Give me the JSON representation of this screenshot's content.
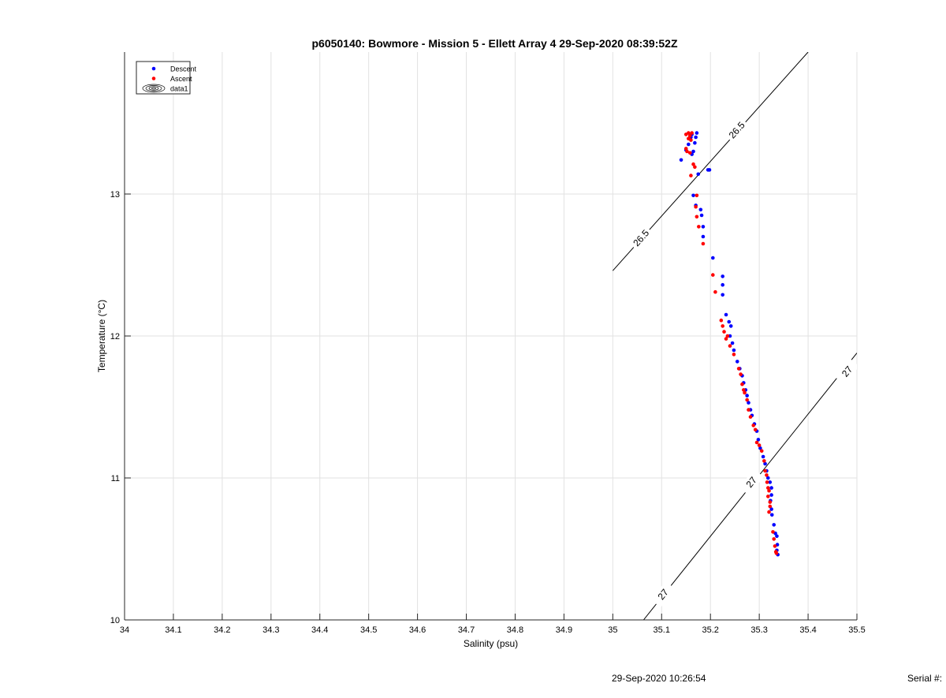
{
  "chart_data": {
    "type": "scatter",
    "title": "p6050140: Bowmore - Mission 5 - Ellett Array 4 29-Sep-2020 08:39:52Z",
    "xlabel": "Salinity (psu)",
    "ylabel": "Temperature (°C)",
    "xlim": [
      34,
      35.5
    ],
    "ylim": [
      10,
      14
    ],
    "x_ticks": [
      34,
      34.1,
      34.2,
      34.3,
      34.4,
      34.5,
      34.6,
      34.7,
      34.8,
      34.9,
      35,
      35.1,
      35.2,
      35.3,
      35.4,
      35.5
    ],
    "x_tick_labels": [
      "34",
      "34.1",
      "34.2",
      "34.3",
      "34.4",
      "34.5",
      "34.6",
      "34.7",
      "34.8",
      "34.9",
      "35",
      "35.1",
      "35.2",
      "35.3",
      "35.4",
      "35.5"
    ],
    "y_ticks": [
      10,
      11,
      12,
      13
    ],
    "y_tick_labels": [
      "10",
      "11",
      "12",
      "13"
    ],
    "grid": true,
    "legend_position": "top-left",
    "legend": [
      {
        "label": "Descent",
        "marker": "dot",
        "color": "#0000ff"
      },
      {
        "label": "Ascent",
        "marker": "dot",
        "color": "#ff0000"
      },
      {
        "label": "data1",
        "marker": "contour"
      }
    ],
    "series": [
      {
        "name": "Descent",
        "color": "#0000ff",
        "points": [
          [
            35.14,
            13.24
          ],
          [
            35.15,
            13.31
          ],
          [
            35.155,
            13.35
          ],
          [
            35.16,
            13.4
          ],
          [
            35.162,
            13.42
          ],
          [
            35.165,
            13.3
          ],
          [
            35.168,
            13.36
          ],
          [
            35.17,
            13.4
          ],
          [
            35.172,
            13.43
          ],
          [
            35.162,
            13.28
          ],
          [
            35.175,
            13.14
          ],
          [
            35.195,
            13.17
          ],
          [
            35.198,
            13.17
          ],
          [
            35.165,
            12.99
          ],
          [
            35.17,
            12.92
          ],
          [
            35.18,
            12.89
          ],
          [
            35.182,
            12.85
          ],
          [
            35.185,
            12.77
          ],
          [
            35.185,
            12.7
          ],
          [
            35.205,
            12.55
          ],
          [
            35.225,
            12.42
          ],
          [
            35.225,
            12.36
          ],
          [
            35.225,
            12.29
          ],
          [
            35.232,
            12.15
          ],
          [
            35.238,
            12.1
          ],
          [
            35.242,
            12.07
          ],
          [
            35.24,
            12.0
          ],
          [
            35.245,
            11.95
          ],
          [
            35.248,
            11.9
          ],
          [
            35.255,
            11.82
          ],
          [
            35.26,
            11.77
          ],
          [
            35.265,
            11.72
          ],
          [
            35.268,
            11.67
          ],
          [
            35.272,
            11.62
          ],
          [
            35.275,
            11.58
          ],
          [
            35.278,
            11.53
          ],
          [
            35.282,
            11.48
          ],
          [
            35.285,
            11.44
          ],
          [
            35.29,
            11.38
          ],
          [
            35.295,
            11.33
          ],
          [
            35.298,
            11.27
          ],
          [
            35.302,
            11.21
          ],
          [
            35.308,
            11.15
          ],
          [
            35.312,
            11.1
          ],
          [
            35.315,
            11.05
          ],
          [
            35.318,
            11.0
          ],
          [
            35.322,
            10.97
          ],
          [
            35.325,
            10.93
          ],
          [
            35.325,
            10.88
          ],
          [
            35.323,
            10.84
          ],
          [
            35.325,
            10.78
          ],
          [
            35.326,
            10.74
          ],
          [
            35.33,
            10.67
          ],
          [
            35.333,
            10.61
          ],
          [
            35.336,
            10.59
          ],
          [
            35.337,
            10.53
          ],
          [
            35.336,
            10.49
          ],
          [
            35.338,
            10.46
          ]
        ]
      },
      {
        "name": "Ascent",
        "color": "#ff0000",
        "points": [
          [
            35.15,
            13.42
          ],
          [
            35.155,
            13.43
          ],
          [
            35.158,
            13.41
          ],
          [
            35.16,
            13.38
          ],
          [
            35.162,
            13.43
          ],
          [
            35.155,
            13.39
          ],
          [
            35.15,
            13.32
          ],
          [
            35.152,
            13.3
          ],
          [
            35.158,
            13.29
          ],
          [
            35.165,
            13.21
          ],
          [
            35.168,
            13.19
          ],
          [
            35.16,
            13.13
          ],
          [
            35.172,
            12.99
          ],
          [
            35.17,
            12.91
          ],
          [
            35.172,
            12.84
          ],
          [
            35.176,
            12.77
          ],
          [
            35.185,
            12.65
          ],
          [
            35.205,
            12.43
          ],
          [
            35.21,
            12.31
          ],
          [
            35.222,
            12.11
          ],
          [
            35.225,
            12.07
          ],
          [
            35.228,
            12.03
          ],
          [
            35.235,
            12.0
          ],
          [
            35.232,
            11.98
          ],
          [
            35.24,
            11.93
          ],
          [
            35.248,
            11.87
          ],
          [
            35.258,
            11.77
          ],
          [
            35.262,
            11.73
          ],
          [
            35.265,
            11.66
          ],
          [
            35.268,
            11.62
          ],
          [
            35.27,
            11.6
          ],
          [
            35.275,
            11.55
          ],
          [
            35.278,
            11.48
          ],
          [
            35.282,
            11.43
          ],
          [
            35.288,
            11.37
          ],
          [
            35.292,
            11.34
          ],
          [
            35.295,
            11.25
          ],
          [
            35.3,
            11.23
          ],
          [
            35.305,
            11.19
          ],
          [
            35.31,
            11.12
          ],
          [
            35.312,
            11.05
          ],
          [
            35.315,
            11.02
          ],
          [
            35.316,
            10.97
          ],
          [
            35.318,
            10.93
          ],
          [
            35.32,
            10.91
          ],
          [
            35.318,
            10.87
          ],
          [
            35.322,
            10.83
          ],
          [
            35.322,
            10.8
          ],
          [
            35.32,
            10.76
          ],
          [
            35.328,
            10.62
          ],
          [
            35.33,
            10.57
          ],
          [
            35.332,
            10.52
          ],
          [
            35.334,
            10.48
          ],
          [
            35.335,
            10.47
          ]
        ]
      }
    ],
    "isopycnals": [
      {
        "label": "26.5",
        "points": [
          [
            35.0,
            12.46
          ],
          [
            35.4,
            14.0
          ]
        ],
        "labels_at": [
          [
            35.058,
            12.69,
            "26.5"
          ],
          [
            35.254,
            13.45,
            "26.5"
          ]
        ]
      },
      {
        "label": "27",
        "points": [
          [
            35.063,
            10.0
          ],
          [
            35.5,
            11.88
          ]
        ],
        "labels_at": [
          [
            35.103,
            10.18,
            "27"
          ],
          [
            35.284,
            10.97,
            "27"
          ],
          [
            35.48,
            11.75,
            "27"
          ]
        ]
      }
    ]
  },
  "footer": {
    "timestamp": "29-Sep-2020 10:26:54",
    "serial_label": "Serial #:"
  }
}
